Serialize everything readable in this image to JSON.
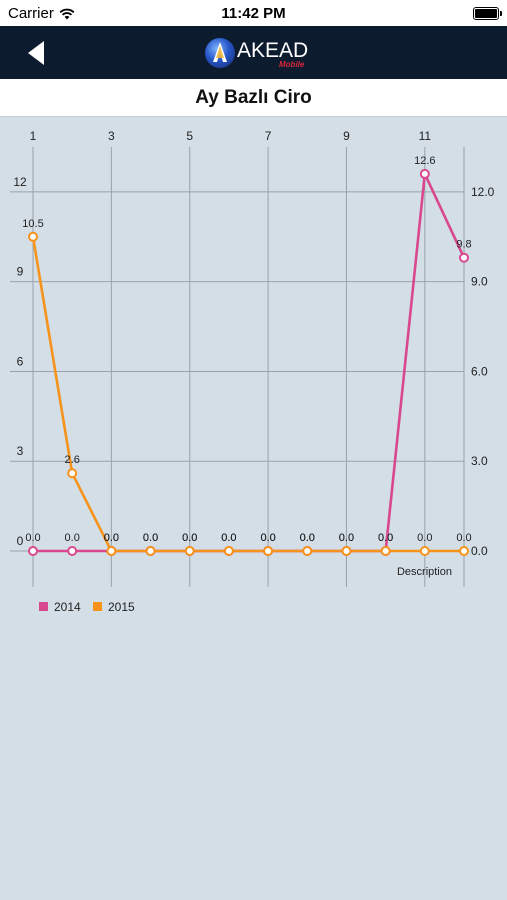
{
  "status_bar": {
    "carrier": "Carrier",
    "time": "11:42 PM",
    "icons": [
      "wifi-icon",
      "battery-icon"
    ]
  },
  "nav": {
    "back_icon": "back-arrow-icon",
    "logo_text": "AKEAD",
    "logo_sub": "Mobile"
  },
  "page": {
    "title": "Ay Bazlı Ciro"
  },
  "colors": {
    "background": "#d3dee6",
    "nav_bg": "#0d1b2e",
    "series_2014": "#d9488e",
    "series_2015": "#f7931a"
  },
  "chart_data": {
    "type": "line",
    "x": [
      1,
      2,
      3,
      4,
      5,
      6,
      7,
      8,
      9,
      10,
      11,
      12
    ],
    "x_ticks": [
      "1",
      "3",
      "5",
      "7",
      "9",
      "11"
    ],
    "y_ticks_left": [
      "0",
      "3",
      "6",
      "9",
      "12"
    ],
    "y_ticks_right": [
      "0.0",
      "3.0",
      "6.0",
      "9.0",
      "12.0"
    ],
    "ylim": [
      0,
      13.5
    ],
    "xlim": [
      1,
      12
    ],
    "grid": true,
    "description": "Description",
    "legend_position": "bottom-left",
    "series": [
      {
        "name": "2014",
        "color": "#d9488e",
        "values": [
          0,
          0,
          0,
          0,
          0,
          0,
          0,
          0,
          0,
          0,
          12.6,
          9.8
        ],
        "labels": [
          "0.0",
          "0.0",
          "0.0",
          "0.0",
          "0.0",
          "0.0",
          "0.0",
          "0.0",
          "0.0",
          "0.0",
          "12.6",
          "9.8"
        ]
      },
      {
        "name": "2015",
        "color": "#f7931a",
        "values": [
          10.5,
          2.6,
          0,
          0,
          0,
          0,
          0,
          0,
          0,
          0,
          0,
          0
        ],
        "labels": [
          "10.5",
          "2.6",
          "0.0",
          "0.0",
          "0.0",
          "0.0",
          "0.0",
          "0.0",
          "0.0",
          "0.0",
          "0.0",
          "0.0"
        ]
      }
    ]
  }
}
